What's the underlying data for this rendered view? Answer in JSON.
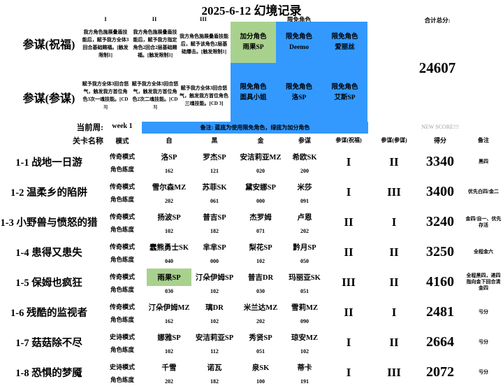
{
  "title": "2025-6-12 幻境记录",
  "colors": {
    "limited_blue": "#3399FF",
    "bonus_green": "#A9D18E"
  },
  "top": {
    "numerals": [
      "I",
      "II",
      "III"
    ],
    "limited_header": "限免角色",
    "total_label": "合计总分:",
    "total_value": "24607",
    "blessing": {
      "label": "参谋(祝福)",
      "descs": [
        "我方角色施展叠盾技能后，赋予我方全体3回合基础赐福。[触发限制1]",
        "我方角色施展叠盾技能后，赋予我方指定角色2回合2层基础赐福。[触发限制1]",
        "我方角色施展叠盾技能后，赋予该角色2层基础爆击。[触发限制1]"
      ],
      "cells": [
        {
          "l1": "加分角色",
          "l2": "雨果SP"
        },
        {
          "l1": "限免角色",
          "l2": "Deemo"
        },
        {
          "l1": "限免角色",
          "l2": "爱丽丝"
        }
      ]
    },
    "advisor": {
      "label": "参谋(参谋)",
      "descs": [
        "赋予我方全体3回合怒气，触发我方首位角色3次一魂技能。[CD 3]",
        "赋予我方全体3回合怒气，触发我方首位角色2次二魂技能。[CD 3]",
        "赋予我方全体3回合怒气，触发我方首位角色三魂技能。[CD 3]"
      ],
      "cells": [
        {
          "l1": "限免角色",
          "l2": "面具小姐"
        },
        {
          "l1": "限免角色",
          "l2": "洛SP"
        },
        {
          "l1": "限免角色",
          "l2": "艾斯SP"
        }
      ]
    }
  },
  "band": {
    "week_label": "当前周:",
    "week_value": "week 1",
    "note": "备注: 蓝底为使用限免角色，绿底为加分角色",
    "new_score": "NEW SCORE!!!"
  },
  "columns": {
    "stage": "关卡名称",
    "mode": "模式",
    "c1": "自",
    "c2": "黑",
    "c3": "金",
    "c4": "参谋",
    "adv1": "参谋(祝福)",
    "adv2": "参谋(参谋)",
    "score": "得分",
    "remark": "备注"
  },
  "labels": {
    "level_row": "角色练度"
  },
  "rows": [
    {
      "stage": "1-1 战地一日游",
      "mode": "传奇模式",
      "chars": [
        {
          "name": "洛SP",
          "level": "162"
        },
        {
          "name": "罗杰SP",
          "level": "121"
        },
        {
          "name": "安洁莉亚MZ",
          "level": "020"
        },
        {
          "name": "希欧SK",
          "level": "200"
        }
      ],
      "adv_blessing": "I",
      "adv_advisor": "II",
      "score": "3340",
      "remark": "黑四",
      "highlight": null
    },
    {
      "stage": "1-2 温柔乡的陷阱",
      "mode": "传奇模式",
      "chars": [
        {
          "name": "雪尔森MZ",
          "level": "202"
        },
        {
          "name": "苏菲SK",
          "level": "061"
        },
        {
          "name": "黛安娜SP",
          "level": "000"
        },
        {
          "name": "米莎",
          "level": "091"
        }
      ],
      "adv_blessing": "I",
      "adv_advisor": "III",
      "score": "3400",
      "remark": "优先白四/金二",
      "highlight": null
    },
    {
      "stage": "1-3 小野兽与愤怒的猎",
      "mode": "传奇模式",
      "chars": [
        {
          "name": "扬波SP",
          "level": "102"
        },
        {
          "name": "普吉SP",
          "level": "182"
        },
        {
          "name": "杰罗姆",
          "level": "071"
        },
        {
          "name": "卢恩",
          "level": "202"
        }
      ],
      "adv_blessing": "II",
      "adv_advisor": "I",
      "score": "3240",
      "remark": "金四/自一、优先存活",
      "highlight": null
    },
    {
      "stage": "1-4 患得又患失",
      "mode": "传奇模式",
      "chars": [
        {
          "name": "蠢熊勇士SK",
          "level": "040"
        },
        {
          "name": "芈芈SP",
          "level": "000"
        },
        {
          "name": "梨花SP",
          "level": "102"
        },
        {
          "name": "黔月SP",
          "level": "050"
        }
      ],
      "adv_blessing": "II",
      "adv_advisor": "II",
      "score": "3250",
      "remark": "全程金六",
      "highlight": null
    },
    {
      "stage": "1-5 保姆也疯狂",
      "mode": "传奇模式",
      "chars": [
        {
          "name": "雨果SP",
          "level": "030"
        },
        {
          "name": "汀朵伊姆SP",
          "level": "102"
        },
        {
          "name": "普吉DR",
          "level": "030"
        },
        {
          "name": "玛丽亚SK",
          "level": "051"
        }
      ],
      "adv_blessing": "III",
      "adv_advisor": "II",
      "score": "4160",
      "remark": "全程黑四，递四指向金下回合清金四",
      "highlight": 0
    },
    {
      "stage": "1-6 残酷的监视者",
      "mode": "传奇模式",
      "chars": [
        {
          "name": "汀朵伊姆MZ",
          "level": "162"
        },
        {
          "name": "璃DR",
          "level": "102"
        },
        {
          "name": "米兰达MZ",
          "level": "202"
        },
        {
          "name": "雪莉MZ",
          "level": "090"
        }
      ],
      "adv_blessing": "II",
      "adv_advisor": "I",
      "score": "2481",
      "remark": "亏分",
      "highlight": null
    },
    {
      "stage": "1-7 菇菇除不尽",
      "mode": "史诗模式",
      "chars": [
        {
          "name": "娜雅SP",
          "level": "102"
        },
        {
          "name": "安洁莉亚SP",
          "level": "112"
        },
        {
          "name": "秀贤SP",
          "level": "051"
        },
        {
          "name": "琼安MZ",
          "level": "102"
        }
      ],
      "adv_blessing": "I",
      "adv_advisor": "II",
      "score": "2664",
      "remark": "亏分",
      "highlight": null
    },
    {
      "stage": "1-8 恐惧的梦魇",
      "mode": "史诗模式",
      "chars": [
        {
          "name": "千雪",
          "level": "202"
        },
        {
          "name": "诺瓦",
          "level": "182"
        },
        {
          "name": "泉SK",
          "level": "100"
        },
        {
          "name": "蒂卡",
          "level": "191"
        }
      ],
      "adv_blessing": "I",
      "adv_advisor": "III",
      "score": "2072",
      "remark": "亏分",
      "highlight": null
    }
  ]
}
